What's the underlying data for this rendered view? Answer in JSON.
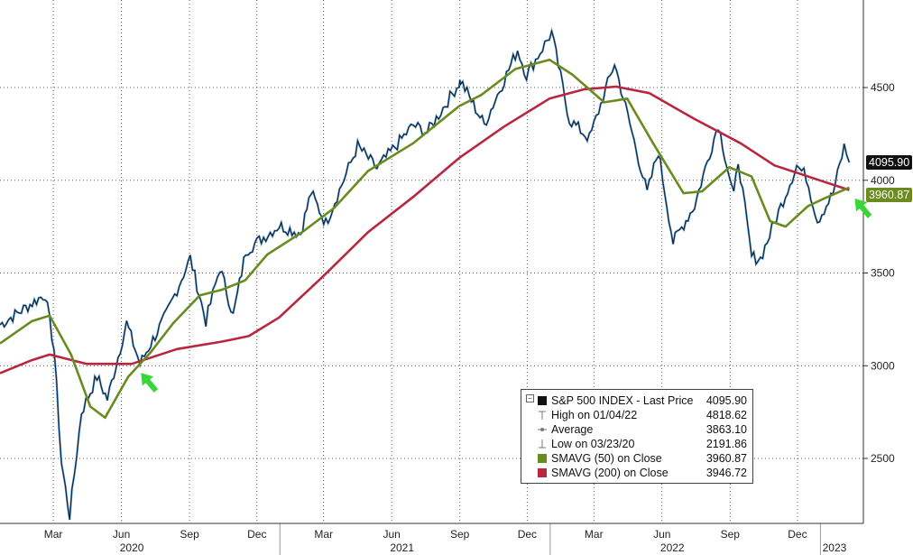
{
  "chart_data": {
    "type": "line",
    "title": "",
    "y_ticks": [
      2500,
      3000,
      3500,
      4000,
      4500
    ],
    "y_tick_labels": [
      "2500",
      "3000",
      "3500",
      "4000",
      "4500"
    ],
    "ylim": [
      2150,
      4900
    ],
    "x_month_labels": [
      {
        "date": "2020-03-01",
        "label": "Mar"
      },
      {
        "date": "2020-06-01",
        "label": "Jun"
      },
      {
        "date": "2020-09-01",
        "label": "Sep"
      },
      {
        "date": "2020-12-01",
        "label": "Dec"
      },
      {
        "date": "2021-03-01",
        "label": "Mar"
      },
      {
        "date": "2021-06-01",
        "label": "Jun"
      },
      {
        "date": "2021-09-01",
        "label": "Sep"
      },
      {
        "date": "2021-12-01",
        "label": "Dec"
      },
      {
        "date": "2022-03-01",
        "label": "Mar"
      },
      {
        "date": "2022-06-01",
        "label": "Jun"
      },
      {
        "date": "2022-09-01",
        "label": "Sep"
      },
      {
        "date": "2022-12-01",
        "label": "Dec"
      }
    ],
    "x_year_labels": [
      {
        "date": "2020-06-15",
        "label": "2020"
      },
      {
        "date": "2021-06-15",
        "label": "2021"
      },
      {
        "date": "2022-06-15",
        "label": "2022"
      },
      {
        "date": "2023-01-20",
        "label": "2023"
      }
    ],
    "xlim": [
      "2019-12-20",
      "2023-02-28"
    ],
    "grid": true,
    "series": [
      {
        "name": "S&P 500 INDEX - Last Price",
        "color": "#1a1a1a",
        "highlight_color": "#2f86d6",
        "points": [
          [
            "2019-12-20",
            3221
          ],
          [
            "2020-01-15",
            3290
          ],
          [
            "2020-02-19",
            3386
          ],
          [
            "2020-03-02",
            3090
          ],
          [
            "2020-03-12",
            2480
          ],
          [
            "2020-03-23",
            2192
          ],
          [
            "2020-04-08",
            2750
          ],
          [
            "2020-04-29",
            2940
          ],
          [
            "2020-05-13",
            2820
          ],
          [
            "2020-06-08",
            3230
          ],
          [
            "2020-06-26",
            3010
          ],
          [
            "2020-07-31",
            3270
          ],
          [
            "2020-09-02",
            3580
          ],
          [
            "2020-09-23",
            3240
          ],
          [
            "2020-10-12",
            3530
          ],
          [
            "2020-10-30",
            3270
          ],
          [
            "2020-11-16",
            3620
          ],
          [
            "2020-12-31",
            3756
          ],
          [
            "2021-01-29",
            3714
          ],
          [
            "2021-02-12",
            3934
          ],
          [
            "2021-03-04",
            3768
          ],
          [
            "2021-04-16",
            4185
          ],
          [
            "2021-05-12",
            4063
          ],
          [
            "2021-06-30",
            4297
          ],
          [
            "2021-07-19",
            4258
          ],
          [
            "2021-08-31",
            4523
          ],
          [
            "2021-09-02",
            4537
          ],
          [
            "2021-10-04",
            4300
          ],
          [
            "2021-11-18",
            4704
          ],
          [
            "2021-11-30",
            4567
          ],
          [
            "2022-01-03",
            4796
          ],
          [
            "2022-01-27",
            4326
          ],
          [
            "2022-02-23",
            4225
          ],
          [
            "2022-03-29",
            4632
          ],
          [
            "2022-05-12",
            3930
          ],
          [
            "2022-05-27",
            4158
          ],
          [
            "2022-06-16",
            3666
          ],
          [
            "2022-07-15",
            3863
          ],
          [
            "2022-08-16",
            4305
          ],
          [
            "2022-09-06",
            3909
          ],
          [
            "2022-09-12",
            4110
          ],
          [
            "2022-09-30",
            3586
          ],
          [
            "2022-10-12",
            3577
          ],
          [
            "2022-11-30",
            4080
          ],
          [
            "2022-12-13",
            4019
          ],
          [
            "2022-12-28",
            3783
          ],
          [
            "2023-01-18",
            3928
          ],
          [
            "2023-02-02",
            4180
          ],
          [
            "2023-02-09",
            4096
          ]
        ]
      },
      {
        "name": "SMAVG (50)  on Close",
        "color": "#6a8c1f",
        "points": [
          [
            "2019-12-20",
            3120
          ],
          [
            "2020-02-01",
            3240
          ],
          [
            "2020-02-25",
            3270
          ],
          [
            "2020-03-25",
            3060
          ],
          [
            "2020-04-20",
            2780
          ],
          [
            "2020-05-10",
            2720
          ],
          [
            "2020-06-10",
            2940
          ],
          [
            "2020-07-10",
            3070
          ],
          [
            "2020-08-10",
            3230
          ],
          [
            "2020-09-15",
            3380
          ],
          [
            "2020-10-15",
            3410
          ],
          [
            "2020-11-15",
            3460
          ],
          [
            "2020-12-15",
            3600
          ],
          [
            "2021-01-31",
            3720
          ],
          [
            "2021-03-15",
            3850
          ],
          [
            "2021-04-30",
            4050
          ],
          [
            "2021-06-30",
            4200
          ],
          [
            "2021-08-31",
            4400
          ],
          [
            "2021-09-30",
            4460
          ],
          [
            "2021-11-15",
            4600
          ],
          [
            "2021-12-31",
            4650
          ],
          [
            "2022-01-31",
            4570
          ],
          [
            "2022-03-15",
            4420
          ],
          [
            "2022-04-15",
            4440
          ],
          [
            "2022-05-20",
            4200
          ],
          [
            "2022-06-30",
            3930
          ],
          [
            "2022-07-25",
            3940
          ],
          [
            "2022-08-31",
            4070
          ],
          [
            "2022-09-30",
            4020
          ],
          [
            "2022-10-25",
            3780
          ],
          [
            "2022-11-15",
            3750
          ],
          [
            "2022-12-15",
            3860
          ],
          [
            "2023-01-05",
            3900
          ],
          [
            "2023-02-09",
            3961
          ]
        ]
      },
      {
        "name": "SMAVG (200)  on Close",
        "color": "#b8273f",
        "points": [
          [
            "2019-12-20",
            2960
          ],
          [
            "2020-02-01",
            3030
          ],
          [
            "2020-02-25",
            3060
          ],
          [
            "2020-04-15",
            3010
          ],
          [
            "2020-06-15",
            3010
          ],
          [
            "2020-08-15",
            3090
          ],
          [
            "2020-10-15",
            3130
          ],
          [
            "2020-11-20",
            3160
          ],
          [
            "2020-12-31",
            3260
          ],
          [
            "2021-02-28",
            3480
          ],
          [
            "2021-04-30",
            3720
          ],
          [
            "2021-06-30",
            3910
          ],
          [
            "2021-08-31",
            4120
          ],
          [
            "2021-10-31",
            4290
          ],
          [
            "2021-12-31",
            4440
          ],
          [
            "2022-02-15",
            4490
          ],
          [
            "2022-03-31",
            4505
          ],
          [
            "2022-05-15",
            4470
          ],
          [
            "2022-07-15",
            4330
          ],
          [
            "2022-09-15",
            4200
          ],
          [
            "2022-10-31",
            4080
          ],
          [
            "2022-12-31",
            4000
          ],
          [
            "2023-02-09",
            3947
          ]
        ]
      }
    ],
    "price_badge": {
      "value": "4095.90",
      "bg": "#111111",
      "fg": "#ffffff"
    },
    "sma50_badge": {
      "value": "3960.87",
      "bg": "#6a8c1f",
      "fg": "#ffffff"
    },
    "annotations": [
      {
        "type": "arrow",
        "color": "#3ddc3d",
        "near_date": "2020-06-20",
        "near_value": 3010
      },
      {
        "type": "arrow",
        "color": "#3ddc3d",
        "near_date": "2023-02-09",
        "near_value": 3950
      }
    ]
  },
  "legend": {
    "rows": [
      {
        "label": "S&P 500 INDEX - Last Price",
        "value": "4095.90",
        "symbol": "black-square"
      },
      {
        "label": "High on 01/04/22",
        "value": "4818.62",
        "symbol": "high-marker"
      },
      {
        "label": "Average",
        "value": "3863.10",
        "symbol": "average-marker"
      },
      {
        "label": "Low on 03/23/20",
        "value": "2191.86",
        "symbol": "low-marker"
      },
      {
        "label": "SMAVG (50)  on Close",
        "value": "3960.87",
        "symbol": "green-square"
      },
      {
        "label": "SMAVG (200)  on Close",
        "value": "3946.72",
        "symbol": "red-square"
      }
    ],
    "colors": {
      "black-square": "#111111",
      "green-square": "#6a8c1f",
      "red-square": "#b8273f"
    }
  }
}
